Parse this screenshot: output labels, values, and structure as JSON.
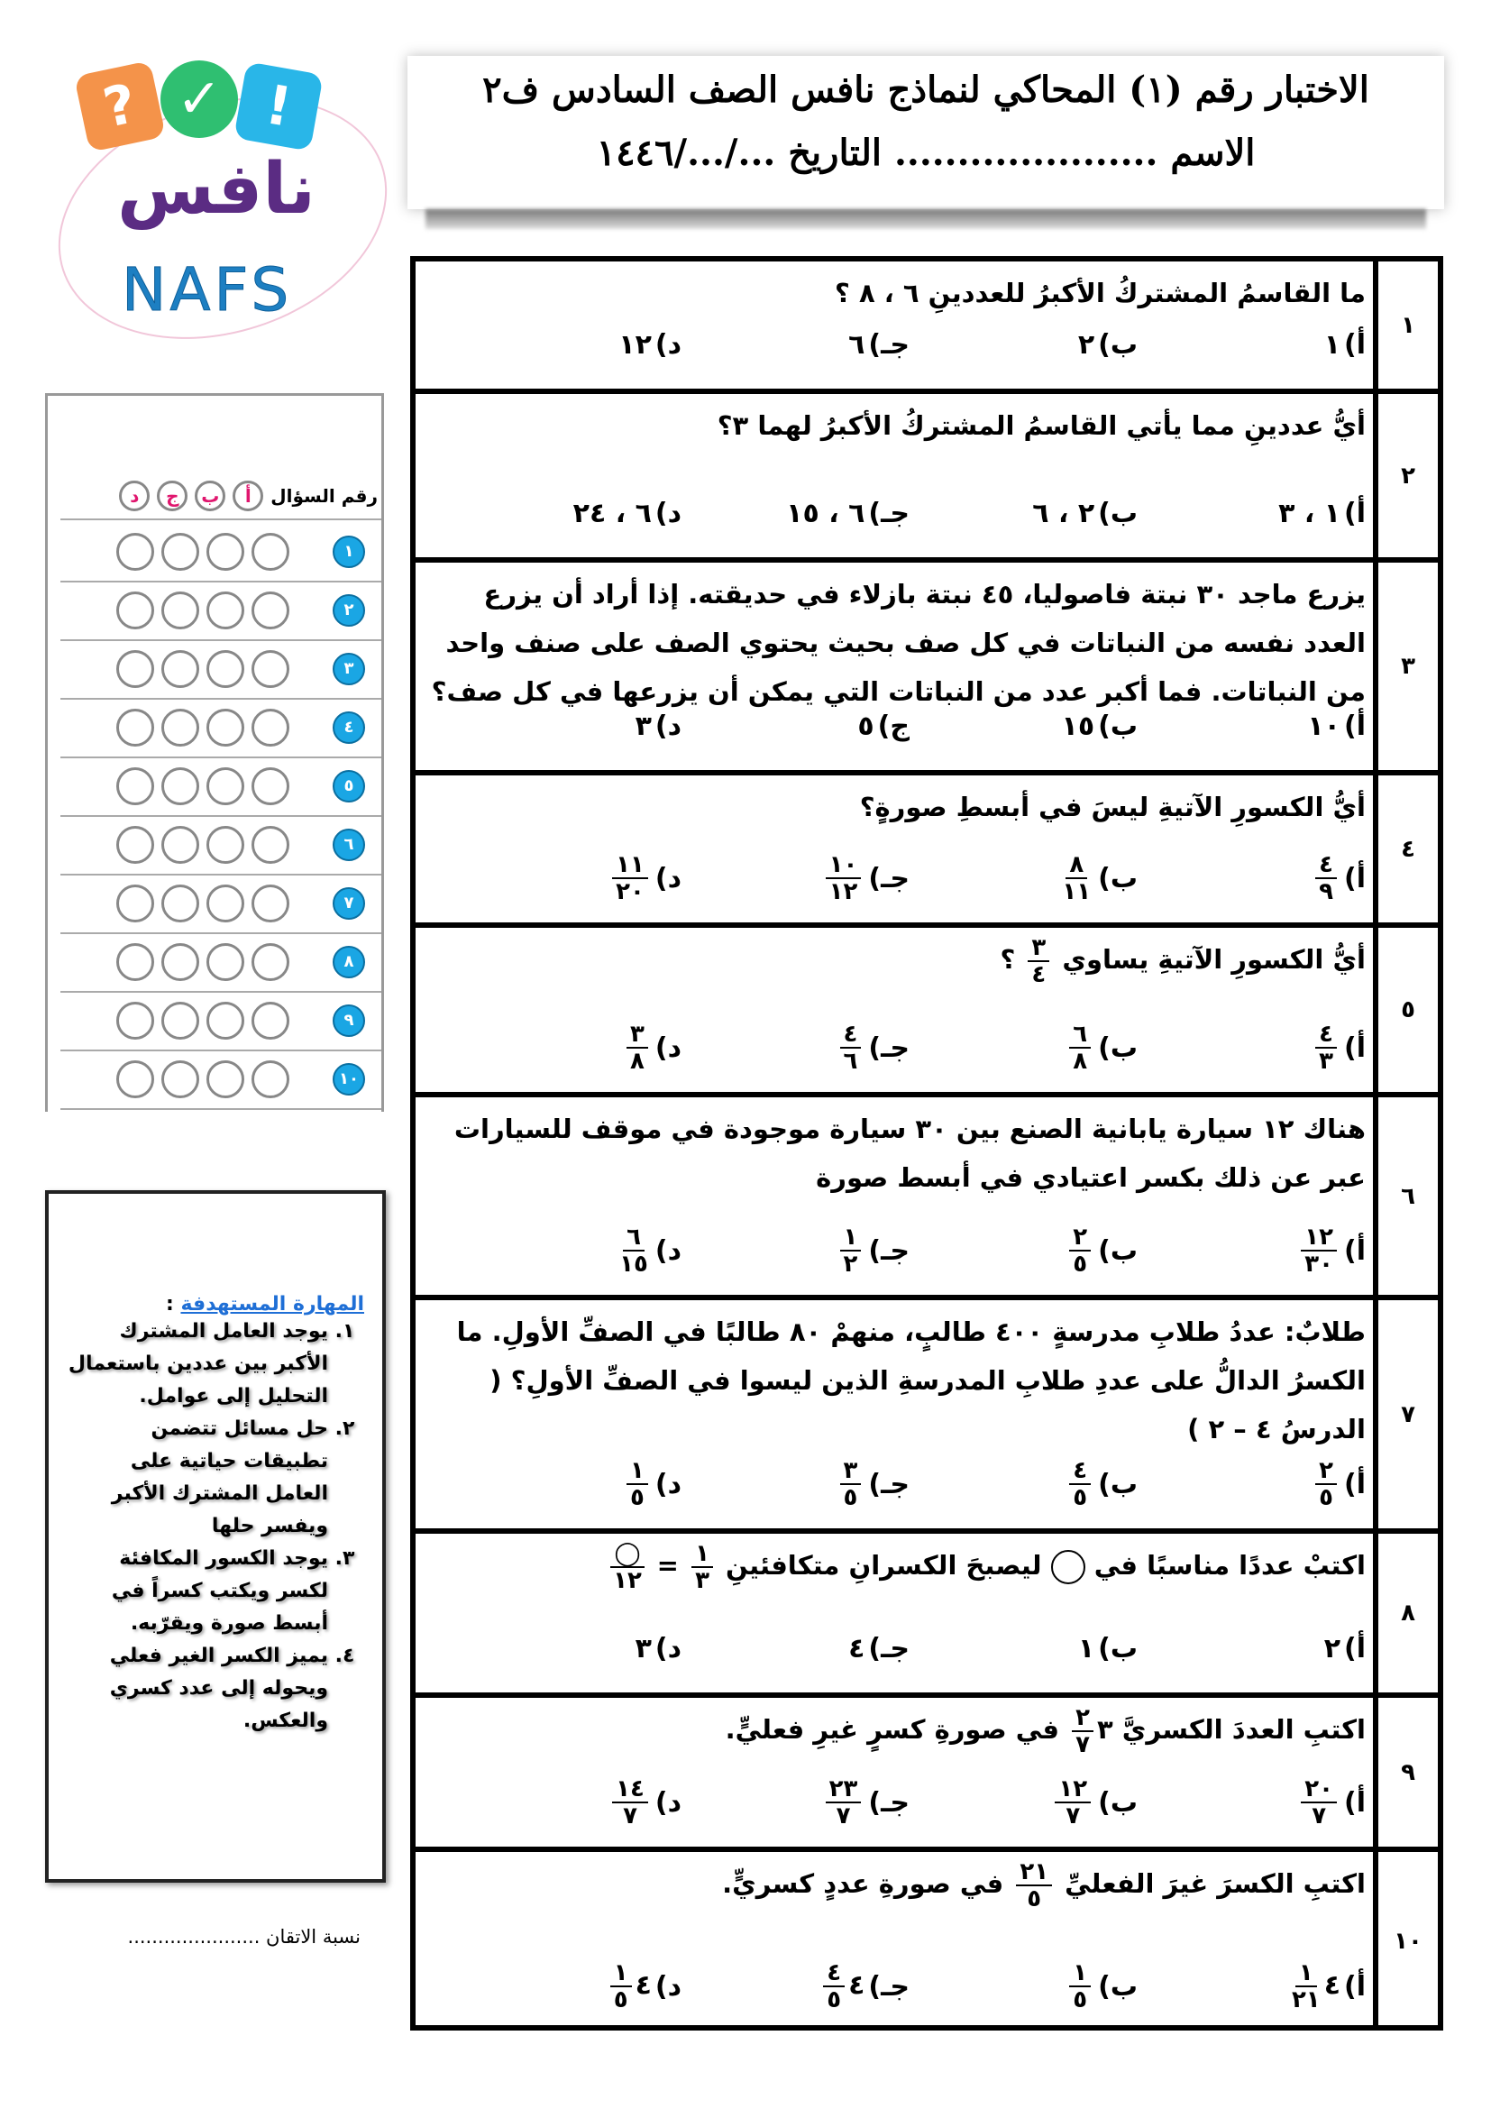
{
  "header": {
    "title": "الاختبار رقم (١) المحاكي لنماذج نافس الصف السادس ف٢",
    "subtitle": "الاسم ..................... التاريخ .../.../١٤٤٦"
  },
  "logo": {
    "arabic": "نافس",
    "latin": "NAFS",
    "tiles": [
      {
        "glyph": "?",
        "color": "#f4934a"
      },
      {
        "glyph": "✓",
        "color": "#2fbf71"
      },
      {
        "glyph": "!",
        "color": "#29b6e8"
      }
    ],
    "text_color": "#5b2c83",
    "latin_color": "#1d7fc2"
  },
  "answer_sheet": {
    "header_label": "رقم السؤال",
    "letters": [
      "أ",
      "ب",
      "ج",
      "د"
    ],
    "rows": [
      "١",
      "٢",
      "٣",
      "٤",
      "٥",
      "٦",
      "٧",
      "٨",
      "٩",
      "١٠"
    ]
  },
  "skills": {
    "title": "المهارة المستهدفة",
    "items": [
      "يوجد العامل المشترك الأكبر بين عددين باستعمال التحليل إلى عوامل.",
      "حل مسائل تتضمن تطبيقات حياتية على العامل المشترك الأكبر ويفسر حلها",
      "يوجد الكسور المكافئة لكسر ويكتب كسراً في أبسط صورة ويقرّبه.",
      "يميز الكسر الغير فعلي ويحوله إلى عدد كسري والعكس."
    ]
  },
  "mastery": "نسبة الاتقان ......................",
  "questions": [
    {
      "num": "١",
      "text": [
        "ما القاسمُ المشتركُ الأكبرُ للعددينِ ٦ ، ٨ ؟"
      ],
      "options": [
        {
          "l": "أ)",
          "t": "١"
        },
        {
          "l": "ب)",
          "t": "٢"
        },
        {
          "l": "جـ)",
          "t": "٦"
        },
        {
          "l": "د)",
          "t": "١٢"
        }
      ]
    },
    {
      "num": "٢",
      "text": [
        "أيُّ عددينِ مما يأتي القاسمُ المشتركُ الأكبرُ لهما ٣؟"
      ],
      "options": [
        {
          "l": "أ)",
          "t": "١ ، ٣"
        },
        {
          "l": "ب)",
          "t": "٢ ، ٦"
        },
        {
          "l": "جـ)",
          "t": "٦ ، ١٥"
        },
        {
          "l": "د)",
          "t": "٦ ، ٢٤"
        }
      ]
    },
    {
      "num": "٣",
      "text": [
        "يزرع ماجد ٣٠ نبتة فاصوليا، ٤٥ نبتة بازلاء في حديقته. إذا أراد أن يزرع العدد نفسه من النباتات في كل صف بحيث يحتوي الصف على صنف واحد من النباتات. فما أكبر عدد من النباتات التي يمكن أن يزرعها في كل صف؟"
      ],
      "options": [
        {
          "l": "أ)",
          "t": "١٠"
        },
        {
          "l": "ب)",
          "t": "١٥"
        },
        {
          "l": "ج)",
          "t": "٥"
        },
        {
          "l": "د)",
          "t": "٣"
        }
      ]
    },
    {
      "num": "٤",
      "text": [
        "أيُّ الكسورِ الآتيةِ ليسَ في أبسطِ صورةٍ؟"
      ],
      "options": [
        {
          "l": "أ)",
          "n": "٤",
          "d": "٩"
        },
        {
          "l": "ب)",
          "n": "٨",
          "d": "١١"
        },
        {
          "l": "جـ)",
          "n": "١٠",
          "d": "١٢"
        },
        {
          "l": "د)",
          "n": "١١",
          "d": "٢٠"
        }
      ]
    },
    {
      "num": "٥",
      "text": [
        "أيُّ الكسورِ الآتيةِ يساوي ",
        {
          "n": "٣",
          "d": "٤"
        },
        " ؟"
      ],
      "options": [
        {
          "l": "أ)",
          "n": "٤",
          "d": "٣"
        },
        {
          "l": "ب)",
          "n": "٦",
          "d": "٨"
        },
        {
          "l": "جـ)",
          "n": "٤",
          "d": "٦"
        },
        {
          "l": "د)",
          "n": "٣",
          "d": "٨"
        }
      ]
    },
    {
      "num": "٦",
      "text": [
        "هناك ١٢ سيارة يابانية الصنع بين ٣٠ سيارة موجودة في موقف للسيارات عبر عن ذلك بكسر اعتيادي في أبسط صورة"
      ],
      "options": [
        {
          "l": "أ)",
          "n": "١٢",
          "d": "٣٠"
        },
        {
          "l": "ب)",
          "n": "٢",
          "d": "٥"
        },
        {
          "l": "جـ)",
          "n": "١",
          "d": "٢"
        },
        {
          "l": "د)",
          "n": "٦",
          "d": "١٥"
        }
      ]
    },
    {
      "num": "٧",
      "text": [
        {
          "b": "طلابٌ:"
        },
        " عددُ طلابِ مدرسةٍ ٤٠٠ طالبٍ، منهمْ ٨٠ طالبًا في الصفِّ الأولِ. ما الكسرُ الدالُّ على عددِ طلابِ المدرسةِ الذين ليسوا في الصفِّ الأولِ؟ ( الدرسُ ٤ – ٢ )"
      ],
      "options": [
        {
          "l": "أ)",
          "n": "٢",
          "d": "٥"
        },
        {
          "l": "ب)",
          "n": "٤",
          "d": "٥"
        },
        {
          "l": "جـ)",
          "n": "٣",
          "d": "٥"
        },
        {
          "l": "د)",
          "n": "١",
          "d": "٥"
        }
      ]
    },
    {
      "num": "٨",
      "text": [
        "اكتبْ عددًا مناسبًا في ",
        {
          "blank": true
        },
        " ليصبحَ الكسرانِ متكافئينِ ",
        {
          "n": "١",
          "d": "٣"
        },
        " = ",
        {
          "n": "◯",
          "d": "١٢"
        }
      ],
      "options": [
        {
          "l": "أ)",
          "t": "٢"
        },
        {
          "l": "ب)",
          "t": "١"
        },
        {
          "l": "جـ)",
          "t": "٤"
        },
        {
          "l": "د)",
          "t": "٣"
        }
      ]
    },
    {
      "num": "٩",
      "text": [
        "اكتبِ العددَ الكسريَّ ",
        {
          "w": "٣",
          "n": "٢",
          "d": "٧"
        },
        " في صورةِ كسرٍ غيرِ فعليٍّ."
      ],
      "options": [
        {
          "l": "أ)",
          "n": "٢٠",
          "d": "٧"
        },
        {
          "l": "ب)",
          "n": "١٢",
          "d": "٧"
        },
        {
          "l": "جـ)",
          "n": "٢٣",
          "d": "٧"
        },
        {
          "l": "د)",
          "n": "١٤",
          "d": "٧"
        }
      ]
    },
    {
      "num": "١٠",
      "text": [
        "اكتبِ الكسرَ غيرَ الفعليِّ ",
        {
          "n": "٢١",
          "d": "٥"
        },
        " في صورةِ عددٍ كسريٍّ."
      ],
      "options": [
        {
          "l": "أ)",
          "w": "٤",
          "n": "١",
          "d": "٢١"
        },
        {
          "l": "ب)",
          "n": "١",
          "d": "٥"
        },
        {
          "l": "جـ)",
          "w": "٤",
          "n": "٤",
          "d": "٥"
        },
        {
          "l": "د)",
          "w": "٤",
          "n": "١",
          "d": "٥"
        }
      ]
    }
  ]
}
